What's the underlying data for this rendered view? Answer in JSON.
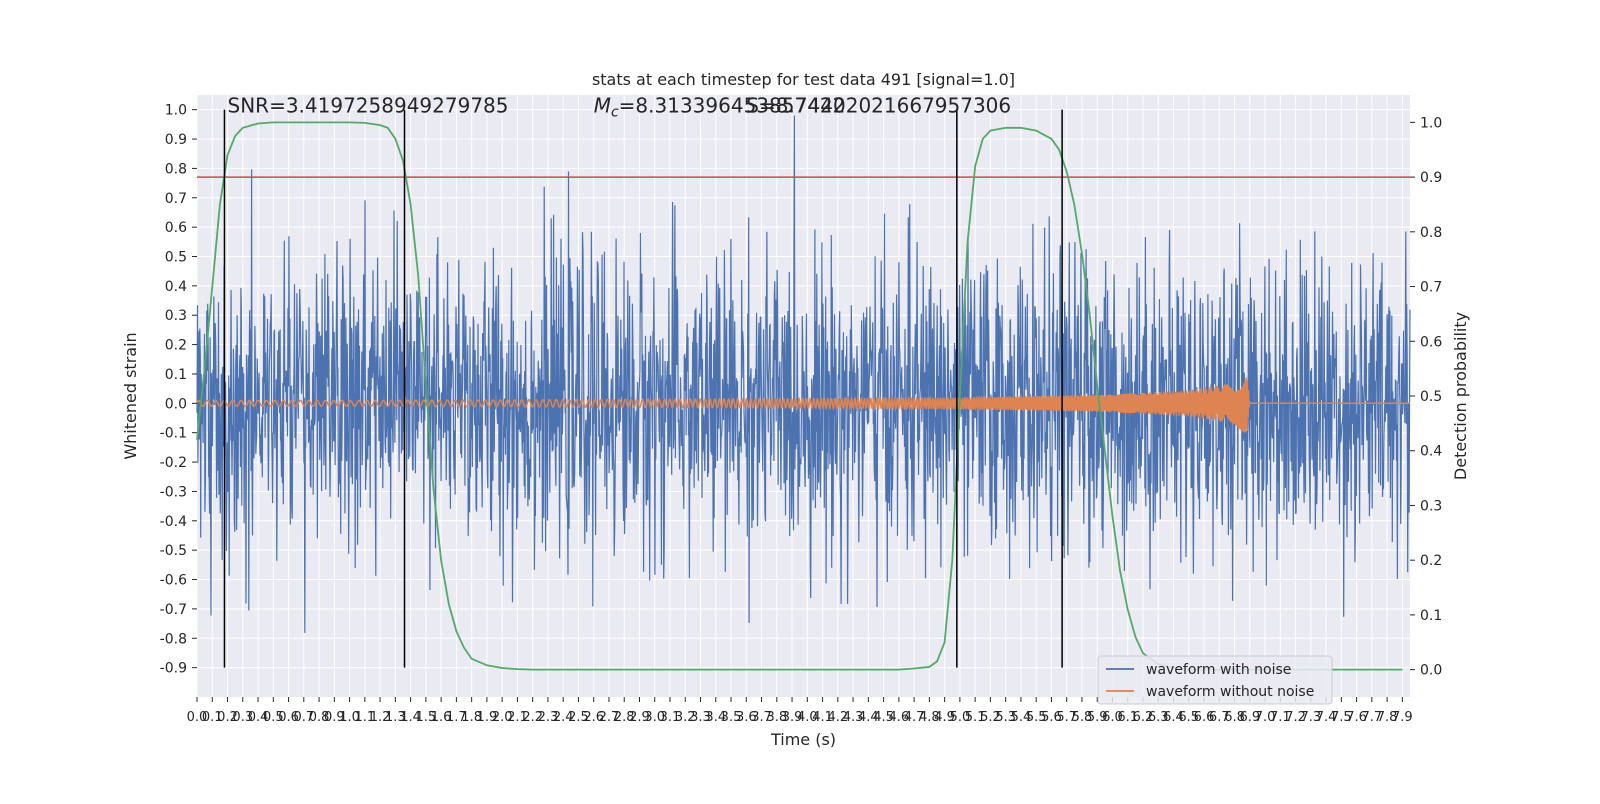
{
  "chart_data": {
    "type": "line",
    "title": "stats at each timestep for test data 491 [signal=1.0]",
    "xlabel": "Time (s)",
    "ylabel_left": "Whitened strain",
    "ylabel_right": "Detection probability",
    "xlim": [
      0,
      7.95
    ],
    "ylim_left": [
      -1.0,
      1.05
    ],
    "ylim_right": [
      -0.05,
      1.05
    ],
    "grid": true,
    "legend_position": "lower-right",
    "x_ticks": [
      0.0,
      0.1,
      0.2,
      0.3,
      0.4,
      0.5,
      0.6,
      0.7,
      0.8,
      0.9,
      1.0,
      1.1,
      1.2,
      1.3,
      1.4,
      1.5,
      1.6,
      1.7,
      1.8,
      1.9,
      2.0,
      2.1,
      2.2,
      2.3,
      2.4,
      2.5,
      2.6,
      2.7,
      2.8,
      2.9,
      3.0,
      3.1,
      3.2,
      3.3,
      3.4,
      3.5,
      3.6,
      3.7,
      3.8,
      3.9,
      4.0,
      4.1,
      4.2,
      4.3,
      4.4,
      4.5,
      4.6,
      4.7,
      4.8,
      4.9,
      5.0,
      5.1,
      5.2,
      5.3,
      5.4,
      5.5,
      5.6,
      5.7,
      5.8,
      5.9,
      6.0,
      6.1,
      6.2,
      6.3,
      6.4,
      6.5,
      6.6,
      6.7,
      6.8,
      6.9,
      7.0,
      7.1,
      7.2,
      7.3,
      7.4,
      7.5,
      7.6,
      7.7,
      7.8,
      7.9
    ],
    "y_ticks_left": [
      -0.9,
      -0.8,
      -0.7,
      -0.6,
      -0.5,
      -0.4,
      -0.3,
      -0.2,
      -0.1,
      0.0,
      0.1,
      0.2,
      0.3,
      0.4,
      0.5,
      0.6,
      0.7,
      0.8,
      0.9,
      1.0
    ],
    "y_ticks_right": [
      0.0,
      0.1,
      0.2,
      0.3,
      0.4,
      0.5,
      0.6,
      0.7,
      0.8,
      0.9,
      1.0
    ],
    "annotations": [
      {
        "text": "SNR=3.4197258949279785",
        "x": 0.2,
        "y": 0.99
      },
      {
        "text": "M_c=8.313396453857422",
        "x": 2.6,
        "y": 0.99
      },
      {
        "text": "S=8.74402021667957306",
        "x": 3.6,
        "y": 0.99
      }
    ],
    "threshold": {
      "value": 0.9,
      "color": "#c44e52"
    },
    "vertical_lines": [
      0.18,
      1.36,
      4.98,
      5.67
    ],
    "vlines_range_left": [
      -0.9,
      1.0
    ],
    "series": [
      {
        "name": "waveform with noise",
        "color": "#4c72b0",
        "noise_envelope": {
          "x": [
            0.0,
            7.95
          ],
          "typical_amplitude": 0.45,
          "max_amplitude": 1.0
        }
      },
      {
        "name": "waveform without noise",
        "color": "#dd8452",
        "x": [
          0.0,
          1.0,
          2.0,
          3.0,
          4.0,
          5.0,
          5.5,
          6.0,
          6.5,
          6.8,
          6.88,
          6.9,
          7.95
        ],
        "amplitude": [
          0.01,
          0.01,
          0.012,
          0.014,
          0.016,
          0.02,
          0.025,
          0.03,
          0.045,
          0.07,
          0.11,
          0.0,
          0.0
        ]
      },
      {
        "name": "detection probability",
        "color": "#55a868",
        "axis": "right",
        "x": [
          0.0,
          0.05,
          0.1,
          0.15,
          0.2,
          0.25,
          0.3,
          0.4,
          0.5,
          0.6,
          0.8,
          1.0,
          1.1,
          1.2,
          1.25,
          1.3,
          1.35,
          1.4,
          1.45,
          1.5,
          1.55,
          1.6,
          1.65,
          1.7,
          1.75,
          1.8,
          1.9,
          2.0,
          2.1,
          2.2,
          2.5,
          3.0,
          4.0,
          4.6,
          4.7,
          4.8,
          4.85,
          4.9,
          4.95,
          5.0,
          5.05,
          5.1,
          5.15,
          5.2,
          5.3,
          5.4,
          5.5,
          5.6,
          5.65,
          5.7,
          5.75,
          5.8,
          5.85,
          5.9,
          5.95,
          6.0,
          6.05,
          6.1,
          6.15,
          6.2,
          6.3,
          6.4,
          6.5,
          7.0,
          7.9
        ],
        "y": [
          0.42,
          0.55,
          0.7,
          0.85,
          0.94,
          0.975,
          0.99,
          0.998,
          1.0,
          1.0,
          1.0,
          1.0,
          0.999,
          0.995,
          0.99,
          0.97,
          0.93,
          0.85,
          0.72,
          0.52,
          0.33,
          0.2,
          0.12,
          0.07,
          0.04,
          0.02,
          0.008,
          0.003,
          0.001,
          0.0,
          0.0,
          0.0,
          0.0,
          0.0,
          0.002,
          0.005,
          0.015,
          0.05,
          0.2,
          0.5,
          0.78,
          0.92,
          0.97,
          0.985,
          0.99,
          0.99,
          0.985,
          0.97,
          0.95,
          0.91,
          0.85,
          0.76,
          0.65,
          0.52,
          0.4,
          0.28,
          0.18,
          0.11,
          0.06,
          0.03,
          0.01,
          0.003,
          0.0,
          0.0,
          0.0
        ]
      }
    ]
  }
}
